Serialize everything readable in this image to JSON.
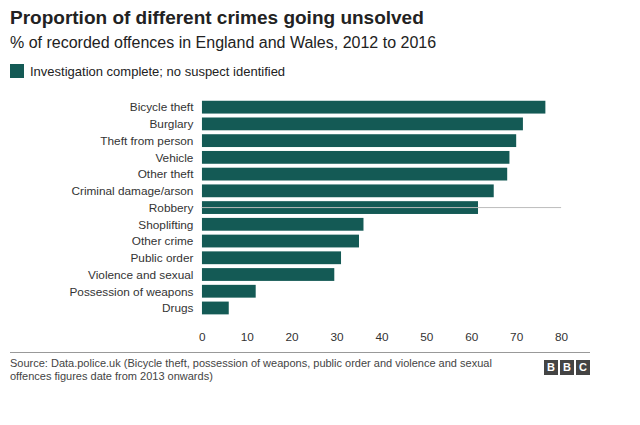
{
  "chart_data": {
    "type": "bar",
    "title": "Proportion of different crimes going unsolved",
    "subtitle": "% of recorded offences in England and Wales, 2012 to 2016",
    "orientation": "horizontal",
    "categories": [
      "Bicycle theft",
      "Burglary",
      "Theft from person",
      "Vehicle",
      "Other theft",
      "Criminal damage/arson",
      "Robbery",
      "Shoplifting",
      "Other crime",
      "Public order",
      "Violence and sexual",
      "Possession of weapons",
      "Drugs"
    ],
    "series": [
      {
        "name": "Investigation complete; no suspect identified",
        "color": "#145a55",
        "values": [
          76.5,
          71.5,
          70,
          68.5,
          68,
          65,
          61.5,
          36,
          35,
          31,
          29.5,
          12,
          6
        ]
      }
    ],
    "xlim": [
      0,
      80
    ],
    "xticks": [
      0,
      10,
      20,
      30,
      40,
      50,
      60,
      70,
      80
    ],
    "grid": false,
    "legend": "top-left",
    "source": "Source: Data.police.uk (Bicycle theft, possession of weapons, public order and violence and sexual offences figures date from 2013 onwards)",
    "logo": "BBC"
  }
}
